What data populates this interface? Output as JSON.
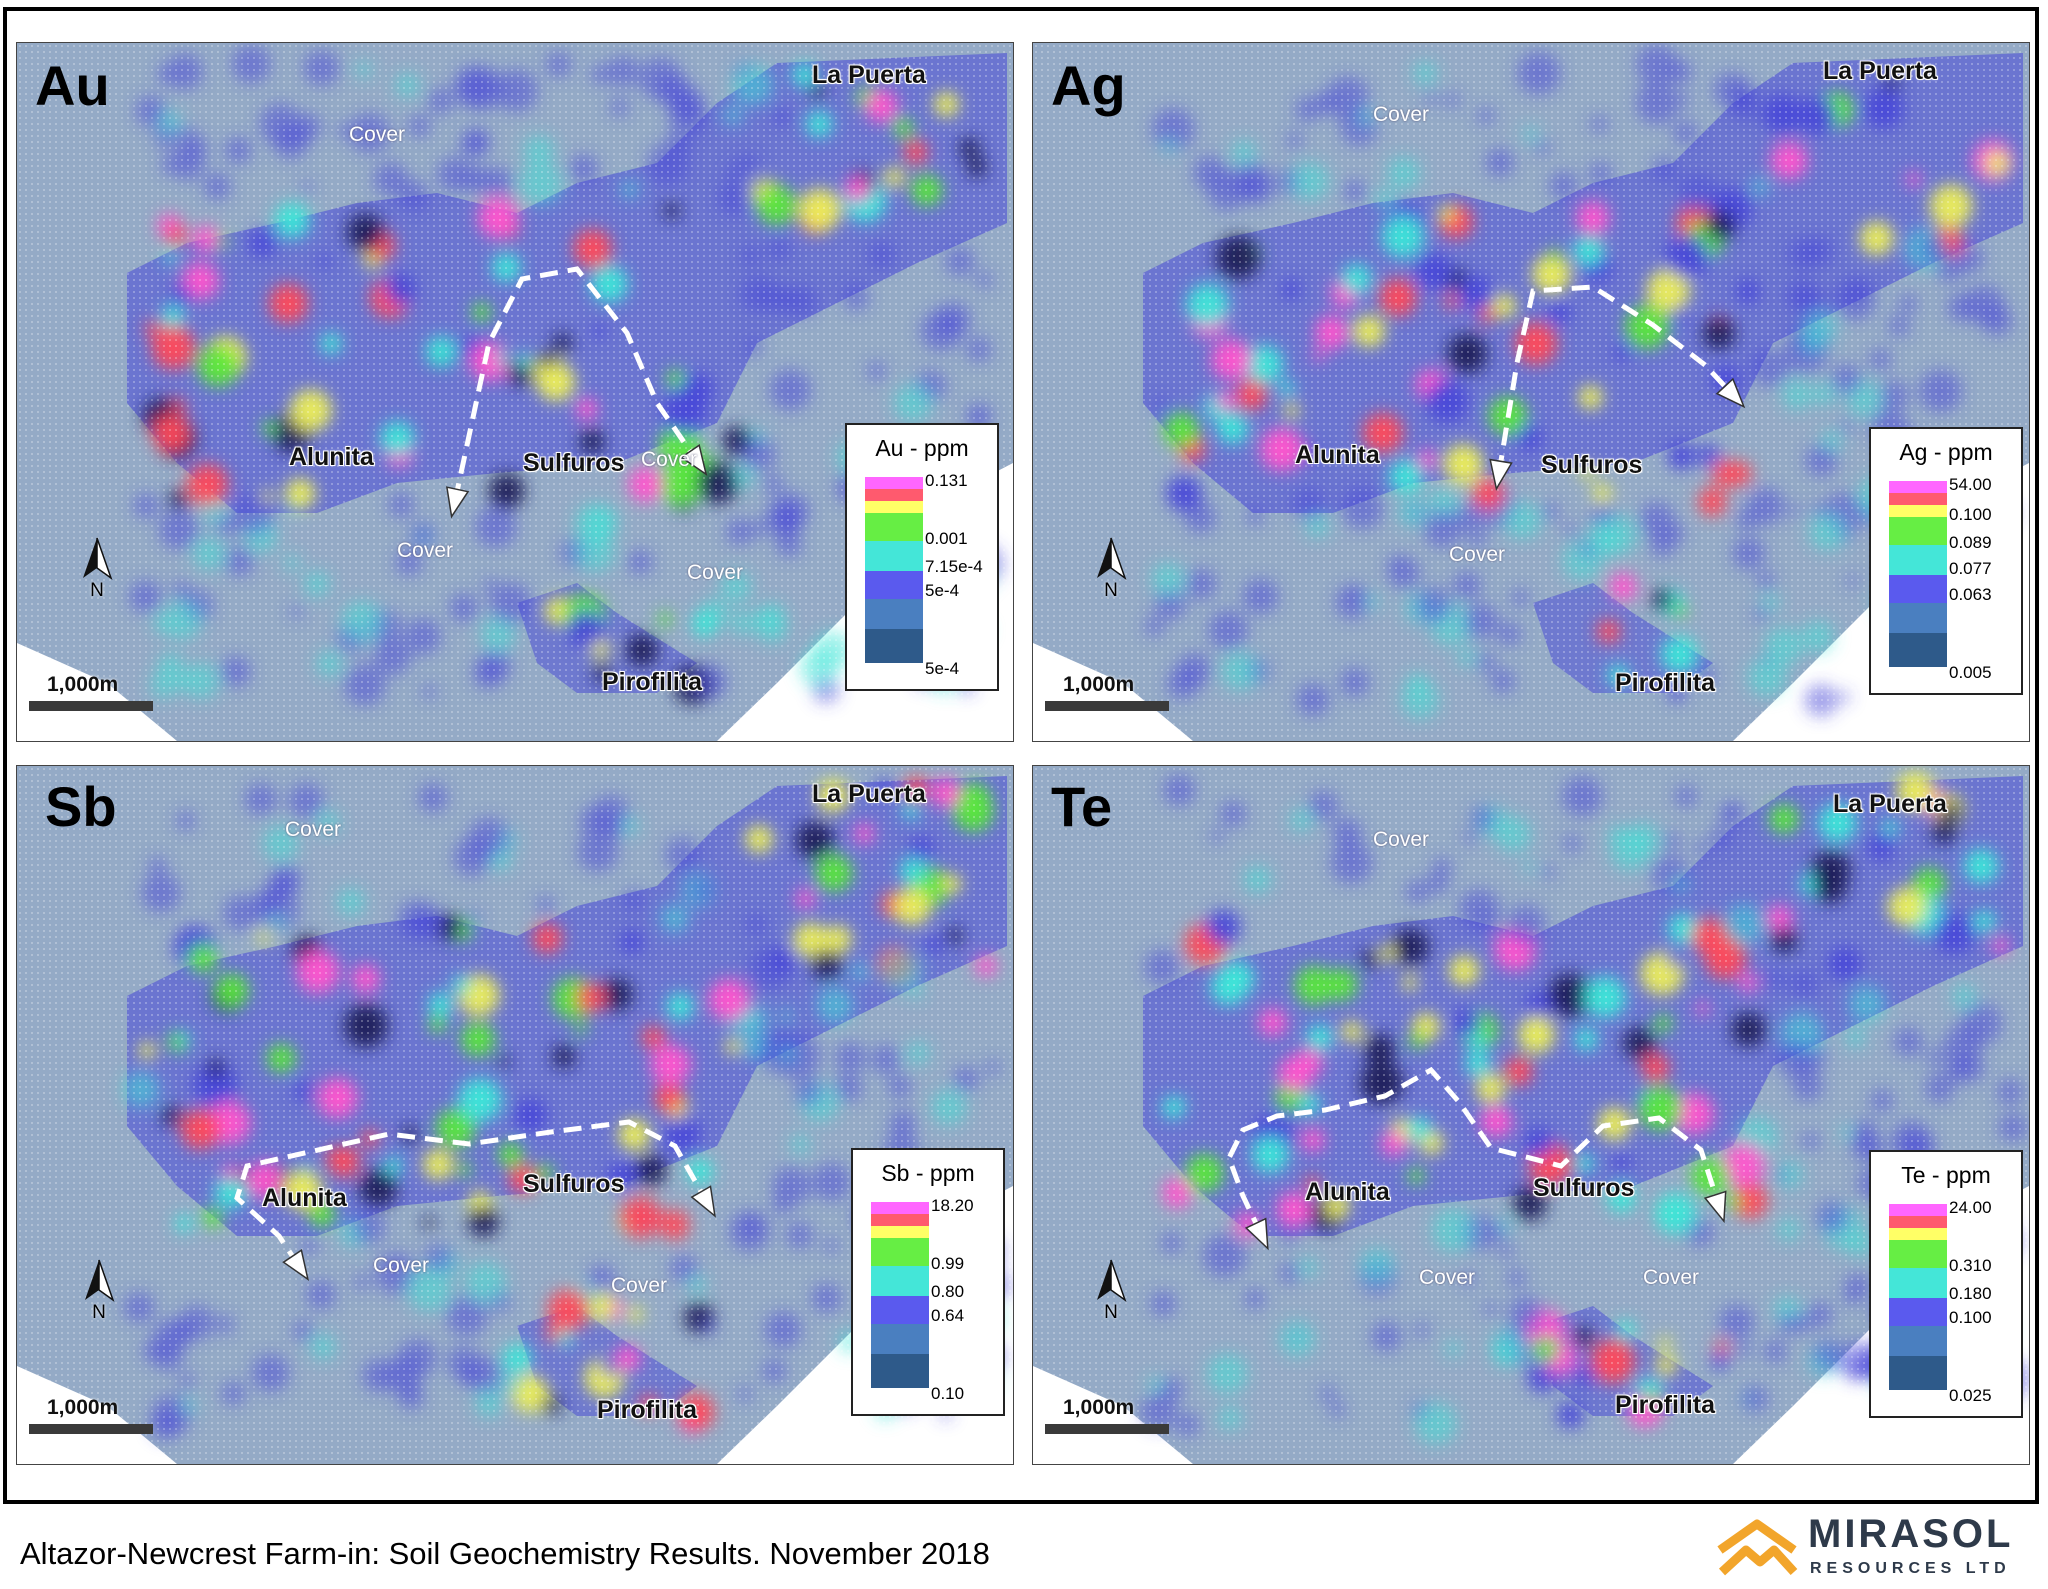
{
  "panels": [
    {
      "element": "Au",
      "labels": {
        "la_puerta": "La Puerta",
        "alunita": "Alunita",
        "sulfuros": "Sulfuros",
        "pirofilita": "Pirofilita"
      },
      "cover_labels": [
        "Cover",
        "Cover",
        "Cover",
        "Cover"
      ],
      "north": "N",
      "scale": "1,000m",
      "legend": {
        "title": "Au - ppm",
        "ticks": [
          "0.131",
          "0.001",
          "7.15e-4",
          "5e-4",
          "5e-4"
        ]
      }
    },
    {
      "element": "Ag",
      "labels": {
        "la_puerta": "La Puerta",
        "alunita": "Alunita",
        "sulfuros": "Sulfuros",
        "pirofilita": "Pirofilita"
      },
      "cover_labels": [
        "Cover",
        "Cover"
      ],
      "north": "N",
      "scale": "1,000m",
      "legend": {
        "title": "Ag - ppm",
        "ticks": [
          "54.00",
          "0.100",
          "0.089",
          "0.077",
          "0.063",
          "0.005"
        ]
      }
    },
    {
      "element": "Sb",
      "labels": {
        "la_puerta": "La Puerta",
        "alunita": "Alunita",
        "sulfuros": "Sulfuros",
        "pirofilita": "Pirofilita"
      },
      "cover_labels": [
        "Cover",
        "Cover",
        "Cover"
      ],
      "north": "N",
      "scale": "1,000m",
      "legend": {
        "title": "Sb - ppm",
        "ticks": [
          "18.20",
          "0.99",
          "0.80",
          "0.64",
          "0.10"
        ]
      }
    },
    {
      "element": "Te",
      "labels": {
        "la_puerta": "La Puerta",
        "alunita": "Alunita",
        "sulfuros": "Sulfuros",
        "pirofilita": "Pirofilita"
      },
      "cover_labels": [
        "Cover",
        "Cover",
        "Cover"
      ],
      "north": "N",
      "scale": "1,000m",
      "legend": {
        "title": "Te - ppm",
        "ticks": [
          "24.00",
          "0.310",
          "0.180",
          "0.100",
          "0.025"
        ]
      }
    }
  ],
  "legend_colors": [
    "#ff66ff",
    "#ff5a6e",
    "#ffff66",
    "#66ee44",
    "#44e6d8",
    "#5a5aee",
    "#4a7fc0",
    "#2e5a8a"
  ],
  "map_colors": {
    "background": "#94aac6",
    "cover_zone": "#7f9fc6",
    "anomaly_high": "#ff55cc",
    "anomaly_red": "#ff4a5a",
    "anomaly_yellow": "#ecee5a",
    "anomaly_green": "#5ae63c",
    "anomaly_cyan": "#3ce6d8",
    "anomaly_blue": "#4848d8",
    "outcrop_dark": "#1e1e5a"
  },
  "caption": "Altazor-Newcrest Farm-in: Soil Geochemistry Results. November 2018",
  "logo": {
    "name": "MIRASOL",
    "sub": "RESOURCES LTD",
    "icon": "mountain-chevron-logo-icon"
  }
}
